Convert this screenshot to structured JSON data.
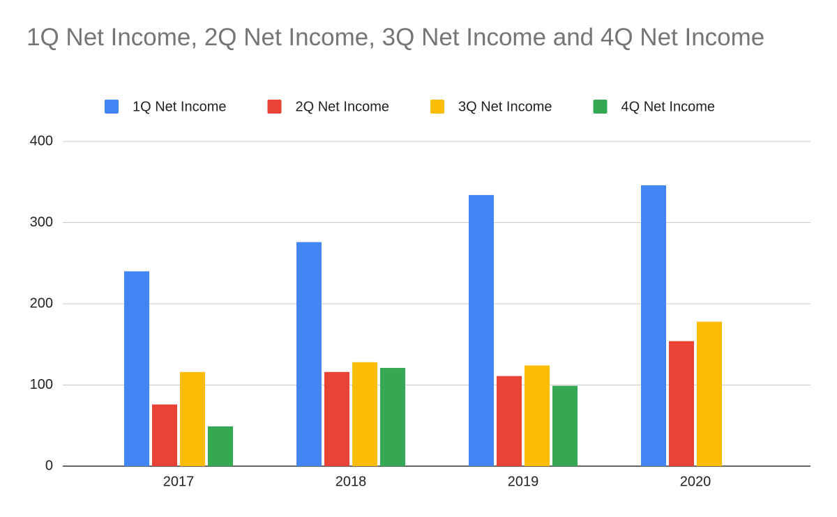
{
  "chart_data": {
    "type": "bar",
    "title": "1Q Net Income, 2Q Net Income, 3Q Net Income and 4Q Net Income",
    "categories": [
      "2017",
      "2018",
      "2019",
      "2020"
    ],
    "series": [
      {
        "name": "1Q Net Income",
        "color": "#4285f4",
        "values": [
          240,
          276,
          334,
          346
        ]
      },
      {
        "name": "2Q Net Income",
        "color": "#ea4335",
        "values": [
          76,
          116,
          111,
          154
        ]
      },
      {
        "name": "3Q Net Income",
        "color": "#fbbc04",
        "values": [
          116,
          128,
          124,
          178
        ]
      },
      {
        "name": "4Q Net Income",
        "color": "#34a853",
        "values": [
          49,
          121,
          99,
          null
        ]
      }
    ],
    "ylim": [
      0,
      400
    ],
    "yticks": [
      0,
      100,
      200,
      300,
      400
    ],
    "grid": true
  }
}
